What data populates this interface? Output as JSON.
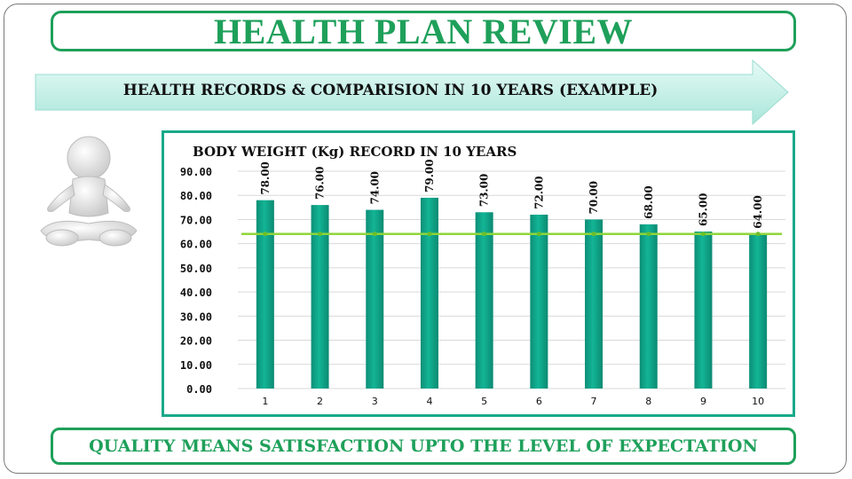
{
  "slide": {
    "title": "HEALTH PLAN REVIEW",
    "banner": "HEALTH RECORDS & COMPARISION IN 10 YEARS (EXAMPLE)",
    "footer": "QUALITY MEANS SATISFACTION UPTO THE LEVEL OF EXPECTATION",
    "colors": {
      "title_green": "#1ea05a",
      "bar_teal": "#13b596",
      "line_green": "#8fd63a",
      "banner_fill": "#c9f2ea"
    }
  },
  "chart_data": {
    "type": "bar",
    "title": "BODY WEIGHT (Kg) RECORD IN 10 YEARS",
    "categories": [
      "1",
      "2",
      "3",
      "4",
      "5",
      "6",
      "7",
      "8",
      "9",
      "10"
    ],
    "series": [
      {
        "values": [
          78,
          76,
          74,
          79,
          73,
          72,
          70,
          68,
          65,
          64
        ]
      }
    ],
    "data_labels": [
      "78.00",
      "76.00",
      "74.00",
      "79.00",
      "73.00",
      "72.00",
      "70.00",
      "68.00",
      "65.00",
      "64.00"
    ],
    "target_line": {
      "value": 64
    },
    "y_ticks": [
      "0.00",
      "10.00",
      "20.00",
      "30.00",
      "40.00",
      "50.00",
      "60.00",
      "70.00",
      "80.00",
      "90.00"
    ],
    "ylim": [
      0,
      90
    ],
    "grid": true,
    "legend": "none"
  }
}
